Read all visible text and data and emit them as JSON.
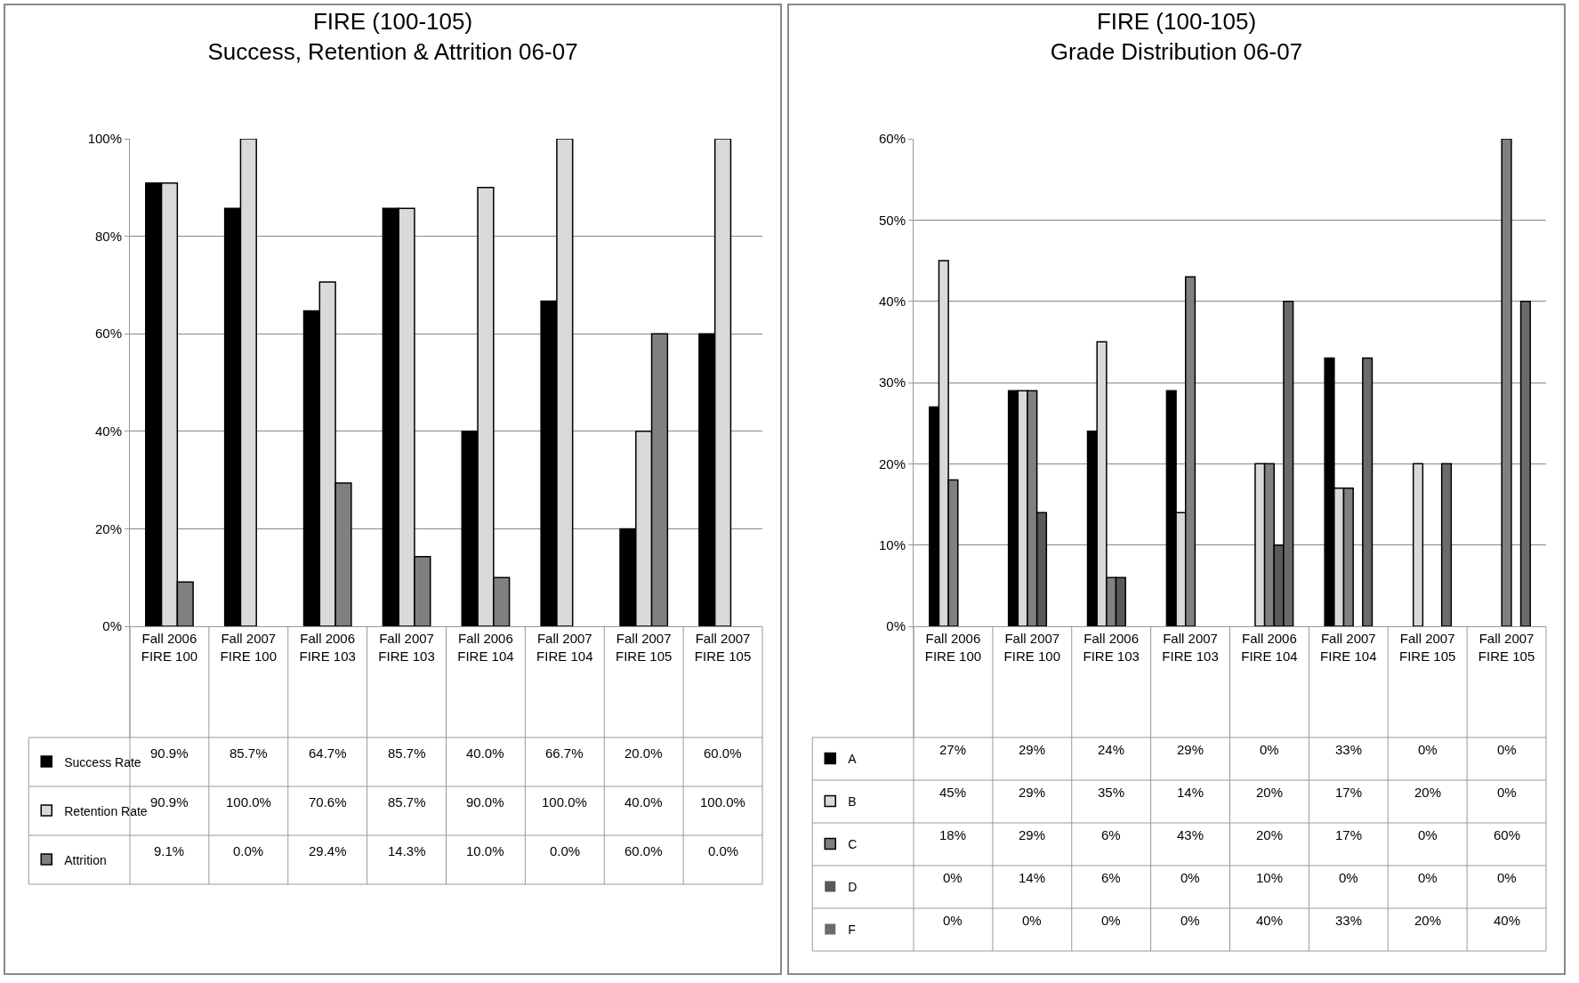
{
  "chart_data": [
    {
      "type": "bar",
      "title": "FIRE (100-105)\nSuccess, Retention & Attrition 06-07",
      "categories": [
        "Fall 2006\nFIRE 100",
        "Fall 2007\nFIRE 100",
        "Fall 2006\nFIRE 103",
        "Fall 2007\nFIRE 103",
        "Fall 2006\nFIRE 104",
        "Fall 2007\nFIRE 104",
        "Fall 2007\nFIRE 105",
        "Fall 2007\nFIRE 105"
      ],
      "series": [
        {
          "name": "Success Rate",
          "color": "#000000",
          "values": [
            90.9,
            85.7,
            64.7,
            85.7,
            40.0,
            66.7,
            20.0,
            60.0
          ],
          "value_labels": [
            "90.9%",
            "85.7%",
            "64.7%",
            "85.7%",
            "40.0%",
            "66.7%",
            "20.0%",
            "60.0%"
          ]
        },
        {
          "name": "Retention Rate",
          "color": "#d9d9d9",
          "values": [
            90.9,
            100,
            70.6,
            85.7,
            90.0,
            100,
            40.0,
            100
          ],
          "value_labels": [
            "90.9%",
            "100.0%",
            "70.6%",
            "85.7%",
            "90.0%",
            "100.0%",
            "40.0%",
            "100.0%"
          ]
        },
        {
          "name": "Attrition",
          "color": "#808080",
          "values": [
            9.1,
            0,
            29.4,
            14.3,
            10.0,
            0,
            60.0,
            0
          ],
          "value_labels": [
            "9.1%",
            "0.0%",
            "29.4%",
            "14.3%",
            "10.0%",
            "0.0%",
            "60.0%",
            "0.0%"
          ]
        }
      ],
      "ylim": [
        0,
        100
      ],
      "yticks": [
        {
          "value": 0,
          "label": "0%"
        },
        {
          "value": 20,
          "label": "20%"
        },
        {
          "value": 40,
          "label": "40%"
        },
        {
          "value": 60,
          "label": "60%"
        },
        {
          "value": 80,
          "label": "80%"
        },
        {
          "value": 100,
          "label": "100%"
        }
      ],
      "grid": "y",
      "legend": "bottom"
    },
    {
      "type": "bar",
      "title": "FIRE (100-105)\nGrade Distribution 06-07",
      "categories": [
        "Fall 2006\nFIRE 100",
        "Fall 2007\nFIRE 100",
        "Fall 2006\nFIRE 103",
        "Fall 2007\nFIRE 103",
        "Fall 2006\nFIRE 104",
        "Fall 2007\nFIRE 104",
        "Fall 2007\nFIRE 105",
        "Fall 2007\nFIRE 105"
      ],
      "series": [
        {
          "name": "A",
          "color": "#000000",
          "values": [
            27,
            29,
            24,
            29,
            0,
            33,
            0,
            0
          ],
          "value_labels": [
            "27%",
            "29%",
            "24%",
            "29%",
            "0%",
            "33%",
            "0%",
            "0%"
          ]
        },
        {
          "name": "B",
          "color": "#d9d9d9",
          "values": [
            45,
            29,
            35,
            14,
            20,
            17,
            20,
            0
          ],
          "value_labels": [
            "45%",
            "29%",
            "35%",
            "14%",
            "20%",
            "17%",
            "20%",
            "0%"
          ]
        },
        {
          "name": "C",
          "color": "#808080",
          "values": [
            18,
            29,
            6,
            43,
            20,
            17,
            0,
            60
          ],
          "value_labels": [
            "18%",
            "29%",
            "6%",
            "43%",
            "20%",
            "17%",
            "0%",
            "60%"
          ]
        },
        {
          "name": "D",
          "color": "#595959",
          "values": [
            0,
            14,
            6,
            0,
            10,
            0,
            0,
            0
          ],
          "value_labels": [
            "0%",
            "14%",
            "6%",
            "0%",
            "10%",
            "0%",
            "0%",
            "0%"
          ]
        },
        {
          "name": "F",
          "color": "#6b6b6b",
          "values": [
            0,
            0,
            0,
            0,
            40,
            33,
            20,
            40
          ],
          "value_labels": [
            "0%",
            "0%",
            "0%",
            "0%",
            "40%",
            "33%",
            "20%",
            "40%"
          ]
        }
      ],
      "ylim": [
        0,
        60
      ],
      "yticks": [
        {
          "value": 0,
          "label": "0%"
        },
        {
          "value": 10,
          "label": "10%"
        },
        {
          "value": 20,
          "label": "20%"
        },
        {
          "value": 30,
          "label": "30%"
        },
        {
          "value": 40,
          "label": "40%"
        },
        {
          "value": 50,
          "label": "50%"
        },
        {
          "value": 60,
          "label": "60%"
        }
      ],
      "grid": "y",
      "legend": "bottom"
    }
  ]
}
